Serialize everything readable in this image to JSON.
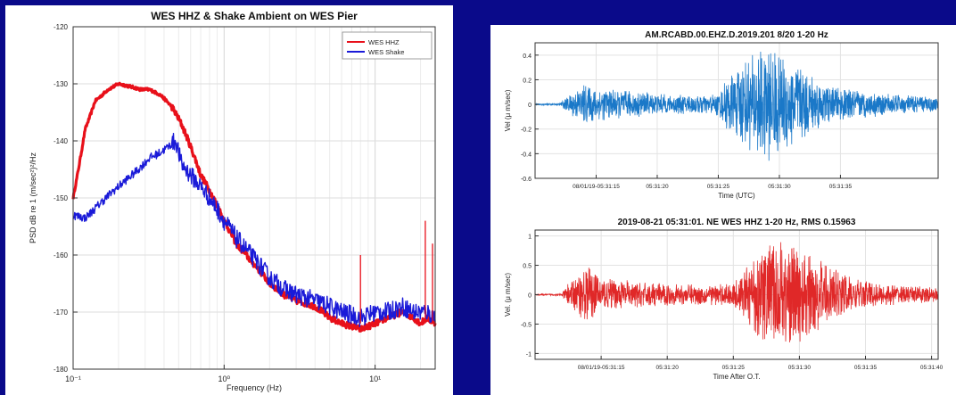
{
  "chart_data": [
    {
      "type": "line",
      "title": "WES HHZ & Shake Ambient on WES Pier",
      "xlabel": "Frequency (Hz)",
      "ylabel": "PSD dB re 1 (m/sec²)²/Hz",
      "xscale": "log",
      "xlim": [
        0.1,
        25
      ],
      "ylim": [
        -180,
        -120
      ],
      "xticks": [
        0.1,
        1,
        10
      ],
      "xtick_labels": [
        "10⁻¹",
        "10⁰",
        "10¹"
      ],
      "yticks": [
        -120,
        -130,
        -140,
        -150,
        -160,
        -170,
        -180
      ],
      "grid": true,
      "legend": "top-right",
      "colors": {
        "WES HHZ": "#e8101a",
        "WES Shake": "#1a1ad8"
      },
      "series": [
        {
          "name": "WES HHZ",
          "x": [
            0.1,
            0.12,
            0.14,
            0.17,
            0.2,
            0.24,
            0.28,
            0.32,
            0.38,
            0.45,
            0.52,
            0.6,
            0.7,
            0.85,
            1.0,
            1.2,
            1.5,
            2.0,
            2.5,
            3.0,
            4.0,
            5.0,
            6.0,
            7.0,
            8.0,
            10.0,
            12.0,
            15.0,
            18.0,
            20.0,
            22.0,
            25.0
          ],
          "y": [
            -150,
            -138,
            -133,
            -131,
            -130,
            -130.5,
            -131,
            -131,
            -132,
            -134,
            -137,
            -141,
            -146,
            -150,
            -154,
            -158,
            -161,
            -165,
            -167,
            -168,
            -169,
            -171,
            -172,
            -172.5,
            -173,
            -172,
            -171,
            -170,
            -171,
            -172,
            -171,
            -172
          ]
        },
        {
          "name": "WES Shake",
          "x": [
            0.1,
            0.12,
            0.15,
            0.18,
            0.22,
            0.27,
            0.32,
            0.38,
            0.45,
            0.48,
            0.52,
            0.6,
            0.7,
            0.85,
            1.0,
            1.2,
            1.5,
            2.0,
            2.5,
            3.0,
            4.0,
            5.0,
            6.0,
            7.0,
            8.0,
            10.0,
            12.0,
            15.0,
            18.0,
            20.0,
            22.0,
            25.0
          ],
          "y": [
            -153,
            -153.5,
            -151,
            -149,
            -147,
            -145,
            -143,
            -142,
            -140.5,
            -140,
            -144,
            -146,
            -148,
            -151,
            -154,
            -157,
            -160,
            -164,
            -166,
            -167,
            -168,
            -169,
            -170,
            -170.5,
            -171,
            -170,
            -170,
            -169,
            -170,
            -170,
            -170,
            -171
          ]
        }
      ]
    },
    {
      "type": "line",
      "title": "AM.RCABD.00.EHZ.D.2019.201 8/20 1-20 Hz",
      "xlabel": "Time (UTC)",
      "ylabel": "Vel (μ m/sec)",
      "xlim": [
        10,
        43
      ],
      "ylim": [
        -0.6,
        0.5
      ],
      "xticks": [
        15,
        20,
        25,
        30,
        35
      ],
      "xtick_labels": [
        "08/01/19-05:31:15",
        "05:31:20",
        "05:31:25",
        "05:31:30",
        "05:31:35"
      ],
      "yticks": [
        0.4,
        0.2,
        0,
        -0.2,
        -0.4,
        -0.6
      ],
      "ytick_labels": [
        "0.4",
        "0.2",
        "0",
        "-0.2",
        "-0.4",
        "-0.6"
      ],
      "grid": true,
      "colors": {
        "trace": "#1a78c8"
      },
      "envelope_times": [
        10,
        12,
        12.5,
        14,
        15,
        17,
        19,
        21,
        23,
        24,
        25,
        26,
        27,
        28,
        29,
        30,
        31,
        32,
        33,
        34,
        36,
        38,
        40,
        42,
        43
      ],
      "envelope_amplitudes": [
        0.005,
        0.008,
        0.05,
        0.17,
        0.14,
        0.12,
        0.1,
        0.08,
        0.08,
        0.08,
        0.1,
        0.25,
        0.35,
        0.44,
        0.48,
        0.42,
        0.38,
        0.3,
        0.22,
        0.15,
        0.12,
        0.1,
        0.08,
        0.07,
        0.06
      ]
    },
    {
      "type": "line",
      "title": "2019-08-21 05:31:01. NE WES HHZ 1-20 Hz, RMS 0.15963",
      "xlabel": "Time After O.T.",
      "ylabel": "Vel. (μ m/sec)",
      "xlim": [
        10,
        40.5
      ],
      "ylim": [
        -1.1,
        1.1
      ],
      "xticks": [
        15,
        20,
        25,
        30,
        35,
        40
      ],
      "xtick_labels": [
        "08/01/19-05:31:15",
        "05:31:20",
        "05:31:25",
        "05:31:30",
        "05:31:35",
        "05:31:40"
      ],
      "yticks": [
        1,
        0.5,
        0,
        -0.5,
        -1
      ],
      "ytick_labels": [
        "1",
        "0.5",
        "0",
        "-0.5",
        "-1"
      ],
      "grid": true,
      "colors": {
        "trace": "#e02828"
      },
      "envelope_times": [
        10,
        12,
        12.5,
        14,
        15,
        17,
        19,
        21,
        23,
        24,
        25,
        26,
        27,
        28,
        29,
        30,
        31,
        32,
        33,
        34,
        36,
        38,
        40,
        40.5
      ],
      "envelope_amplitudes": [
        0.01,
        0.02,
        0.2,
        0.5,
        0.3,
        0.25,
        0.2,
        0.18,
        0.18,
        0.18,
        0.2,
        0.5,
        0.8,
        0.95,
        1.0,
        0.85,
        0.7,
        0.55,
        0.4,
        0.3,
        0.2,
        0.16,
        0.14,
        0.12
      ]
    }
  ]
}
